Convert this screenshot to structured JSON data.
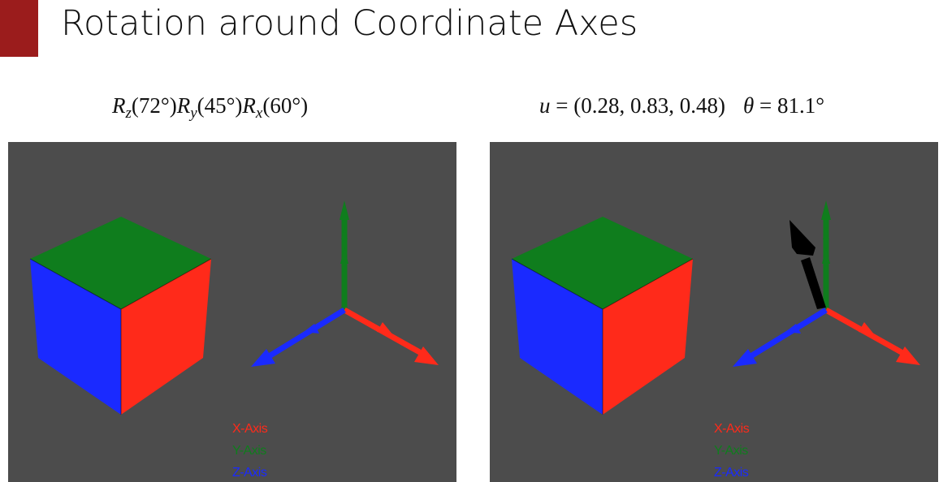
{
  "title": "Rotation around Coordinate Axes",
  "formula_left": {
    "R1": "R",
    "s1": "z",
    "a1": "(72°)",
    "R2": "R",
    "s2": "y",
    "a2": "(45°)",
    "R3": "R",
    "s3": "x",
    "a3": "(60°)"
  },
  "formula_right": {
    "u": "u",
    "u_eq": " = (0.28, 0.83, 0.48)",
    "theta": "θ",
    "theta_eq": " = 81.1°"
  },
  "legend": {
    "x": "X-Axis",
    "y": "Y-Axis",
    "z": "Z-Axis"
  },
  "colors": {
    "accent": "#9b1c1c",
    "viewport_bg": "#4c4c4c",
    "x_axis": "#ff2a1a",
    "y_axis": "#0f7d1d",
    "z_axis": "#1a2aff",
    "rotation_axis": "#000000"
  }
}
